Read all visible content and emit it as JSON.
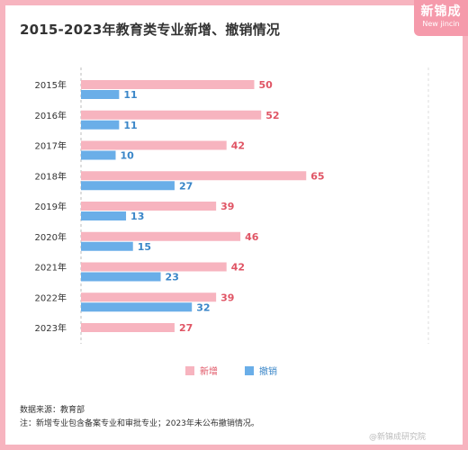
{
  "title": "2015-2023年教育类专业新增、撤销情况",
  "logo": {
    "main": "新锦成",
    "sub": "New jincin"
  },
  "source": "数据来源：教育部",
  "note": "注：新增专业包含备案专业和审批专业；2023年未公布撤销情况。",
  "watermark": "@新锦成研究院",
  "colors": {
    "added": "#f7b4bf",
    "removed": "#6aaee8",
    "added_label": "#e05565",
    "removed_label": "#3a86c8"
  },
  "chart_data": {
    "type": "bar",
    "orientation": "horizontal",
    "categories": [
      "2015年",
      "2016年",
      "2017年",
      "2018年",
      "2019年",
      "2020年",
      "2021年",
      "2022年",
      "2023年"
    ],
    "series": [
      {
        "name": "新增",
        "values": [
          50,
          52,
          42,
          65,
          39,
          46,
          42,
          39,
          27
        ]
      },
      {
        "name": "撤销",
        "values": [
          11,
          11,
          10,
          27,
          13,
          15,
          23,
          32,
          null
        ]
      }
    ],
    "xlim": [
      0,
      70
    ],
    "legend": "bottom-center",
    "grid": false
  }
}
